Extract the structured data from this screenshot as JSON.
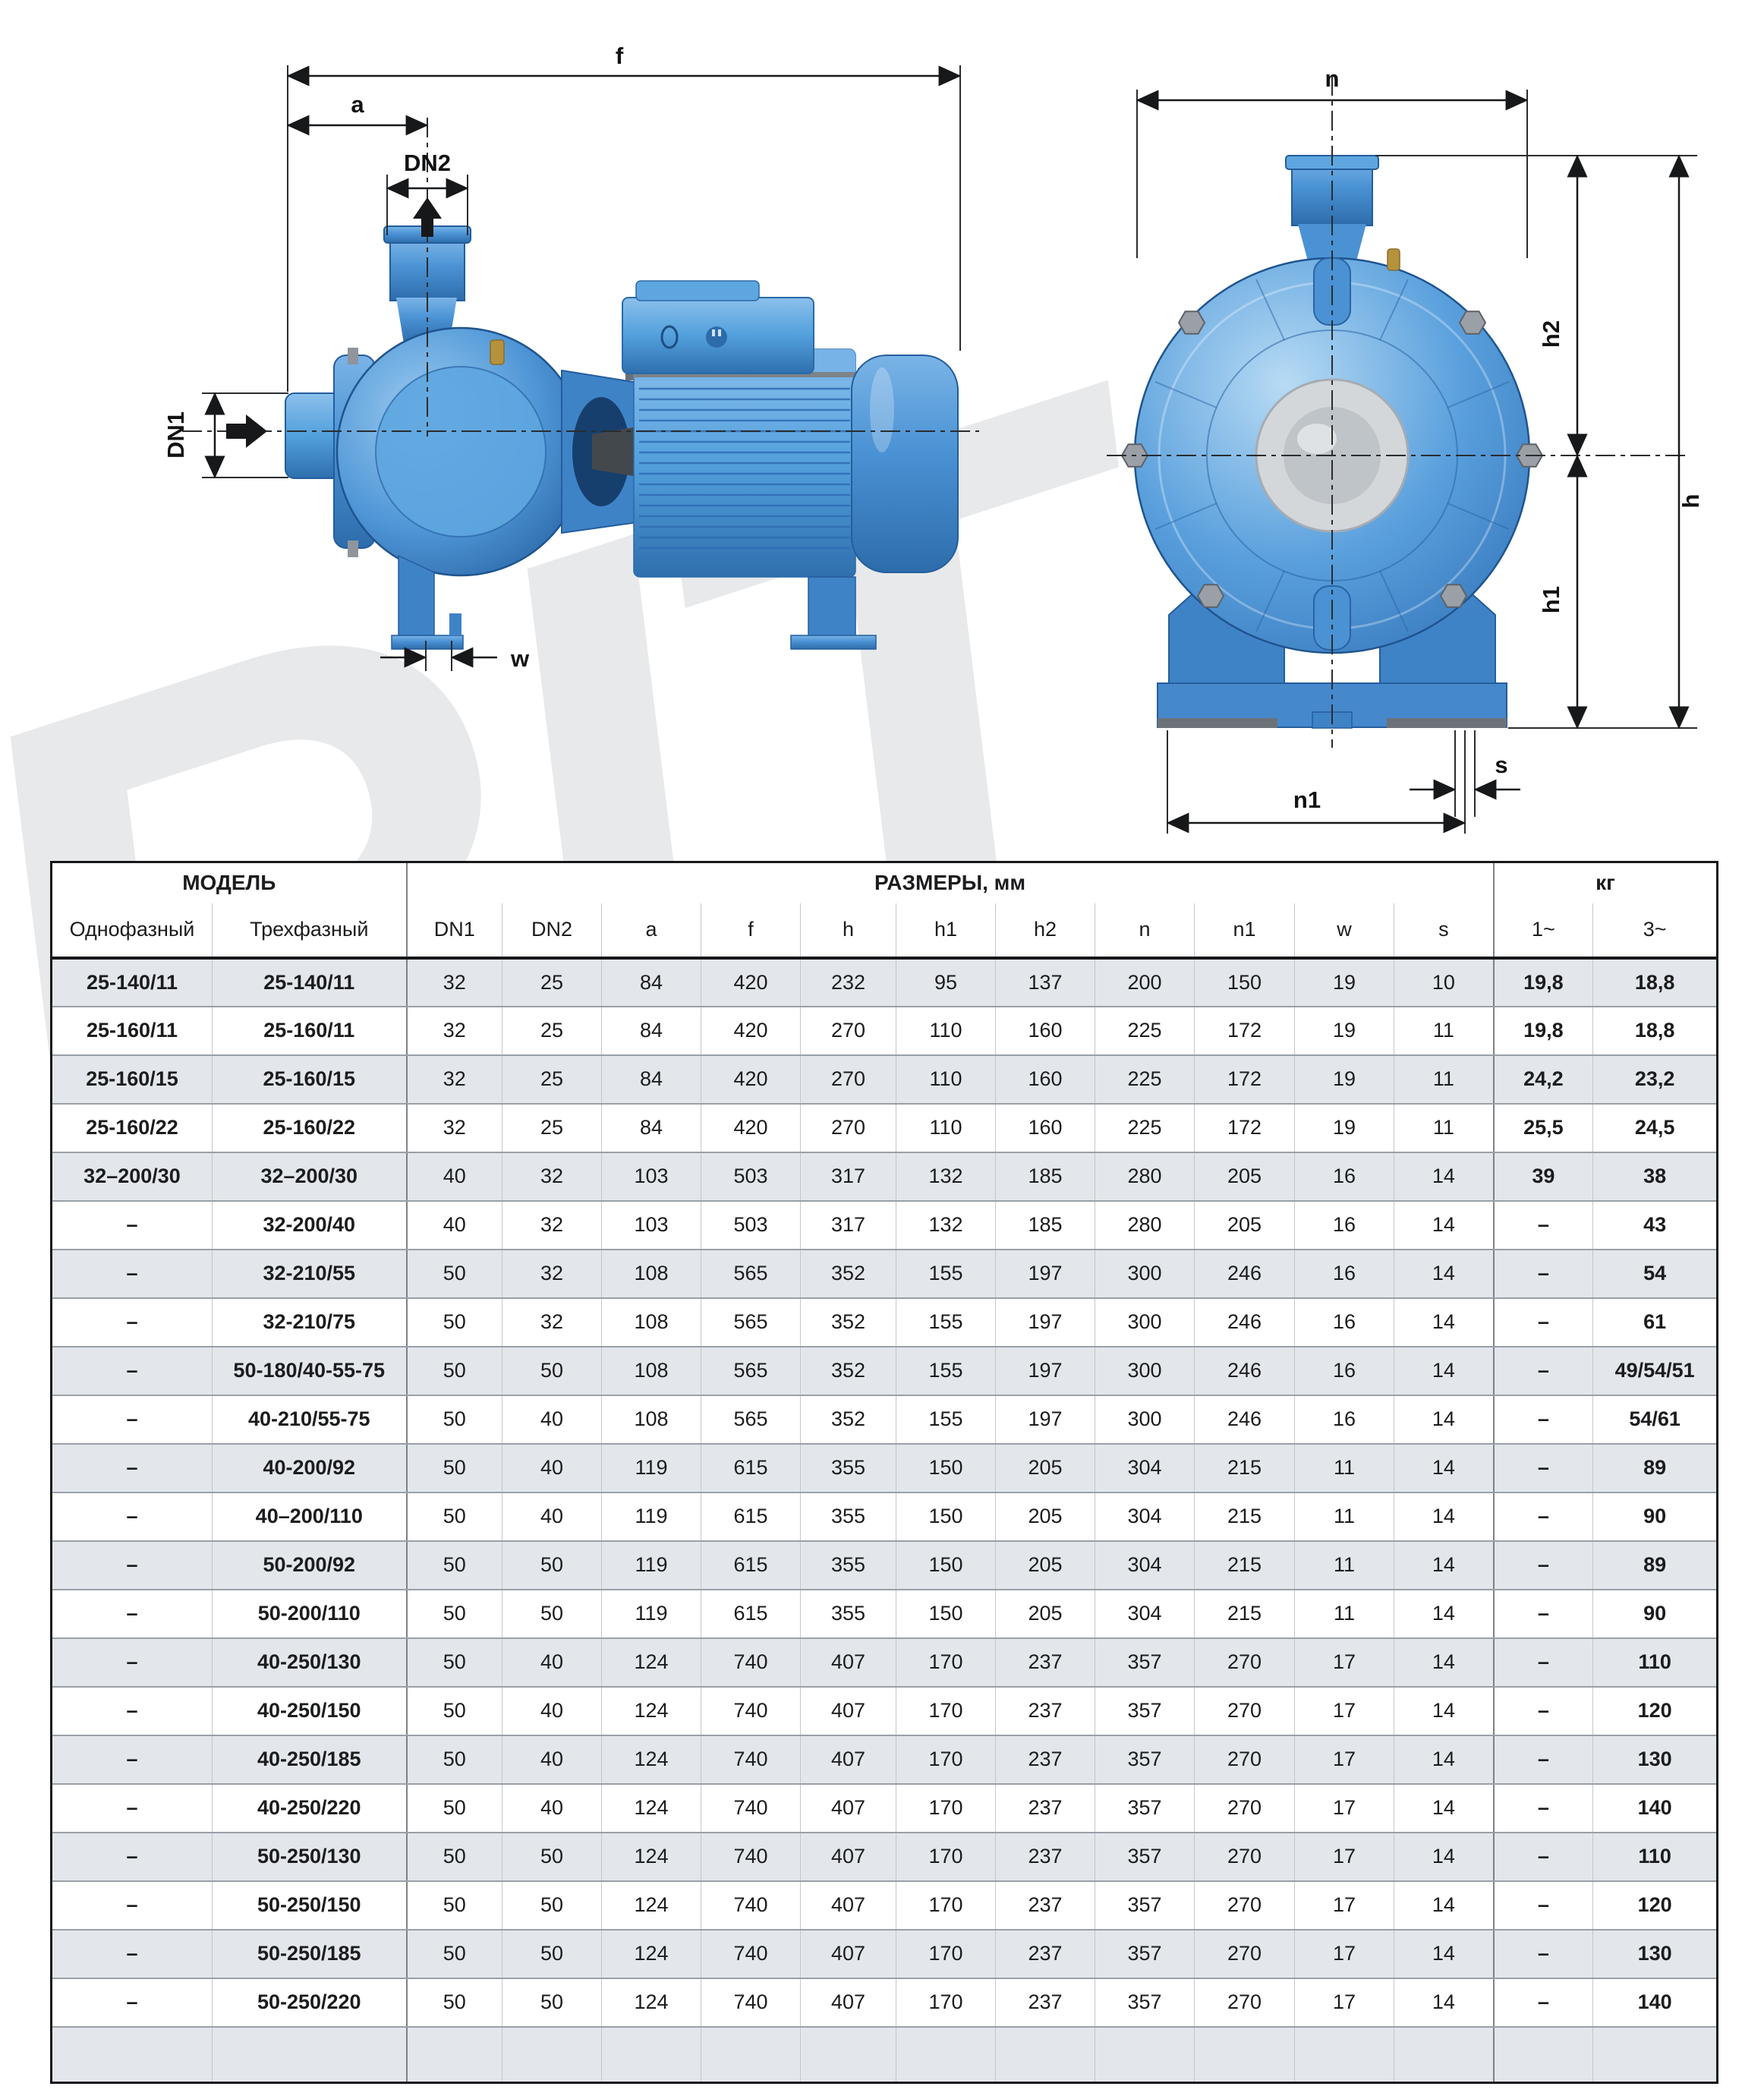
{
  "watermark": {
    "text": "RIT",
    "color": "#e7e9eb"
  },
  "diagrams": {
    "pump_color": "#4a92d4",
    "side_view": {
      "name": "pump side view with overall dimensions",
      "labels": {
        "f": "f",
        "a": "a",
        "dn2": "DN2",
        "dn1": "DN1",
        "w": "w"
      }
    },
    "front_view": {
      "name": "pump front view with height dimensions",
      "labels": {
        "n": "n",
        "h2": "h2",
        "h": "h",
        "h1": "h1",
        "n1": "n1",
        "s": "s"
      }
    }
  },
  "table": {
    "header": {
      "model_group": "МОДЕЛЬ",
      "dimensions_group": "РАЗМЕРЫ, мм",
      "weight_group": "кг",
      "columns": [
        "Однофазный",
        "Трехфазный",
        "DN1",
        "DN2",
        "a",
        "f",
        "h",
        "h1",
        "h2",
        "n",
        "n1",
        "w",
        "s",
        "1~",
        "3~"
      ]
    },
    "row_colors": {
      "striped": "#e3e7eb",
      "plain": "#ffffff"
    },
    "rows": [
      [
        "25-140/11",
        "25-140/11",
        "32",
        "25",
        "84",
        "420",
        "232",
        "95",
        "137",
        "200",
        "150",
        "19",
        "10",
        "19,8",
        "18,8"
      ],
      [
        "25-160/11",
        "25-160/11",
        "32",
        "25",
        "84",
        "420",
        "270",
        "110",
        "160",
        "225",
        "172",
        "19",
        "11",
        "19,8",
        "18,8"
      ],
      [
        "25-160/15",
        "25-160/15",
        "32",
        "25",
        "84",
        "420",
        "270",
        "110",
        "160",
        "225",
        "172",
        "19",
        "11",
        "24,2",
        "23,2"
      ],
      [
        "25-160/22",
        "25-160/22",
        "32",
        "25",
        "84",
        "420",
        "270",
        "110",
        "160",
        "225",
        "172",
        "19",
        "11",
        "25,5",
        "24,5"
      ],
      [
        "32–200/30",
        "32–200/30",
        "40",
        "32",
        "103",
        "503",
        "317",
        "132",
        "185",
        "280",
        "205",
        "16",
        "14",
        "39",
        "38"
      ],
      [
        "–",
        "32-200/40",
        "40",
        "32",
        "103",
        "503",
        "317",
        "132",
        "185",
        "280",
        "205",
        "16",
        "14",
        "–",
        "43"
      ],
      [
        "–",
        "32-210/55",
        "50",
        "32",
        "108",
        "565",
        "352",
        "155",
        "197",
        "300",
        "246",
        "16",
        "14",
        "–",
        "54"
      ],
      [
        "–",
        "32-210/75",
        "50",
        "32",
        "108",
        "565",
        "352",
        "155",
        "197",
        "300",
        "246",
        "16",
        "14",
        "–",
        "61"
      ],
      [
        "–",
        "50-180/40-55-75",
        "50",
        "50",
        "108",
        "565",
        "352",
        "155",
        "197",
        "300",
        "246",
        "16",
        "14",
        "–",
        "49/54/51"
      ],
      [
        "–",
        "40-210/55-75",
        "50",
        "40",
        "108",
        "565",
        "352",
        "155",
        "197",
        "300",
        "246",
        "16",
        "14",
        "–",
        "54/61"
      ],
      [
        "–",
        "40-200/92",
        "50",
        "40",
        "119",
        "615",
        "355",
        "150",
        "205",
        "304",
        "215",
        "11",
        "14",
        "–",
        "89"
      ],
      [
        "–",
        "40–200/110",
        "50",
        "40",
        "119",
        "615",
        "355",
        "150",
        "205",
        "304",
        "215",
        "11",
        "14",
        "–",
        "90"
      ],
      [
        "–",
        "50-200/92",
        "50",
        "50",
        "119",
        "615",
        "355",
        "150",
        "205",
        "304",
        "215",
        "11",
        "14",
        "–",
        "89"
      ],
      [
        "–",
        "50-200/110",
        "50",
        "50",
        "119",
        "615",
        "355",
        "150",
        "205",
        "304",
        "215",
        "11",
        "14",
        "–",
        "90"
      ],
      [
        "–",
        "40-250/130",
        "50",
        "40",
        "124",
        "740",
        "407",
        "170",
        "237",
        "357",
        "270",
        "17",
        "14",
        "–",
        "110"
      ],
      [
        "–",
        "40-250/150",
        "50",
        "40",
        "124",
        "740",
        "407",
        "170",
        "237",
        "357",
        "270",
        "17",
        "14",
        "–",
        "120"
      ],
      [
        "–",
        "40-250/185",
        "50",
        "40",
        "124",
        "740",
        "407",
        "170",
        "237",
        "357",
        "270",
        "17",
        "14",
        "–",
        "130"
      ],
      [
        "–",
        "40-250/220",
        "50",
        "40",
        "124",
        "740",
        "407",
        "170",
        "237",
        "357",
        "270",
        "17",
        "14",
        "–",
        "140"
      ],
      [
        "–",
        "50-250/130",
        "50",
        "50",
        "124",
        "740",
        "407",
        "170",
        "237",
        "357",
        "270",
        "17",
        "14",
        "–",
        "110"
      ],
      [
        "–",
        "50-250/150",
        "50",
        "50",
        "124",
        "740",
        "407",
        "170",
        "237",
        "357",
        "270",
        "17",
        "14",
        "–",
        "120"
      ],
      [
        "–",
        "50-250/185",
        "50",
        "50",
        "124",
        "740",
        "407",
        "170",
        "237",
        "357",
        "270",
        "17",
        "14",
        "–",
        "130"
      ],
      [
        "–",
        "50-250/220",
        "50",
        "50",
        "124",
        "740",
        "407",
        "170",
        "237",
        "357",
        "270",
        "17",
        "14",
        "–",
        "140"
      ]
    ]
  }
}
